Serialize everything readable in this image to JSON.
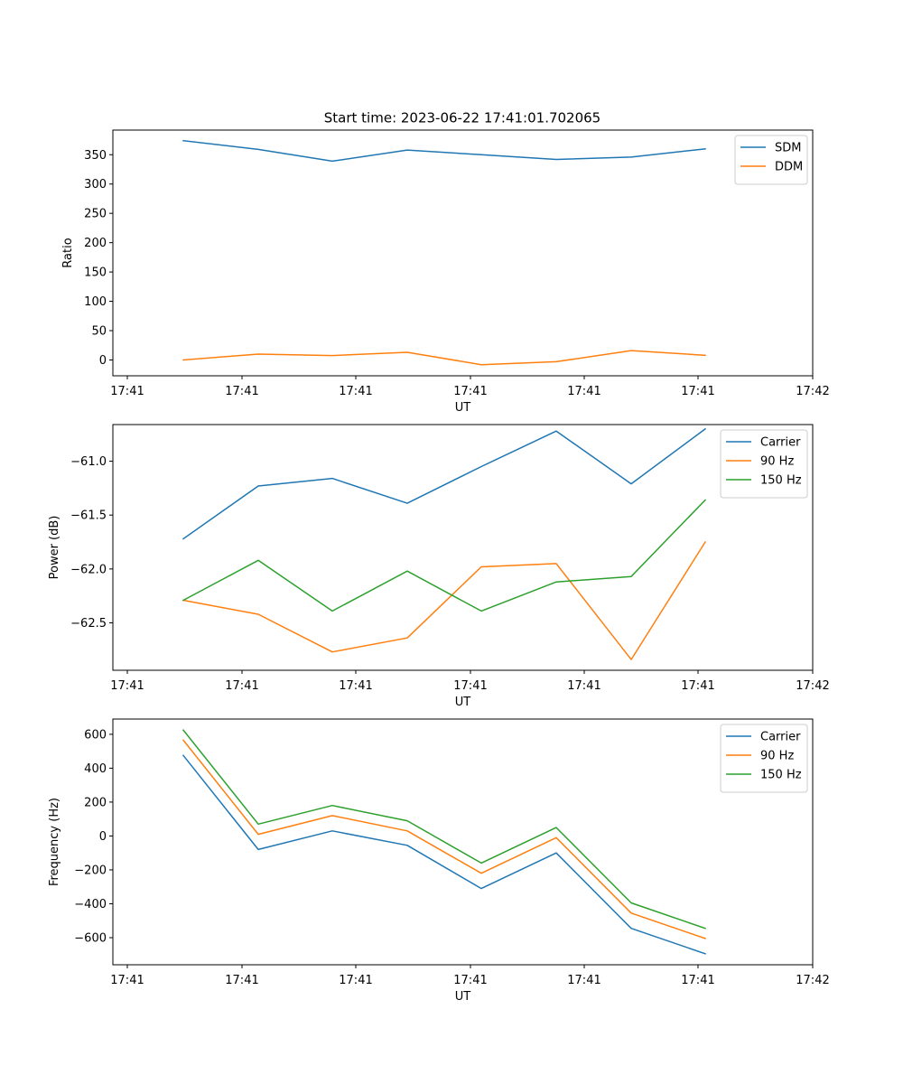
{
  "title": "Start time: 2023-06-22 17:41:01.702065",
  "colors": {
    "blue": "#1f77b4",
    "orange": "#ff7f0e",
    "green": "#2ca02c"
  },
  "chart_data": [
    {
      "type": "line",
      "title": "Start time: 2023-06-22 17:41:01.702065",
      "xlabel": "UT",
      "ylabel": "Ratio",
      "xtick_labels": [
        "17:41",
        "17:41",
        "17:41",
        "17:41",
        "17:41",
        "17:41",
        "17:42"
      ],
      "ytick_labels": [
        "0",
        "50",
        "100",
        "150",
        "200",
        "250",
        "300",
        "350"
      ],
      "yticks": [
        0,
        50,
        100,
        150,
        200,
        250,
        300,
        350
      ],
      "ylim": [
        -27,
        392
      ],
      "grid": false,
      "legend": "top-right",
      "series": [
        {
          "name": "SDM",
          "color": "#1f77b4",
          "values": [
            374,
            359,
            339,
            358,
            350,
            342,
            346,
            360
          ]
        },
        {
          "name": "DDM",
          "color": "#ff7f0e",
          "values": [
            0,
            10,
            7.5,
            13,
            -8,
            -3,
            16,
            8
          ]
        }
      ]
    },
    {
      "type": "line",
      "title": "",
      "xlabel": "UT",
      "ylabel": "Power (dB)",
      "xtick_labels": [
        "17:41",
        "17:41",
        "17:41",
        "17:41",
        "17:41",
        "17:41",
        "17:42"
      ],
      "ytick_labels": [
        "−62.5",
        "−62.0",
        "−61.5",
        "−61.0"
      ],
      "yticks": [
        -62.5,
        -62.0,
        -61.5,
        -61.0
      ],
      "ylim": [
        -62.94,
        -60.66
      ],
      "grid": false,
      "legend": "top-right",
      "series": [
        {
          "name": "Carrier",
          "color": "#1f77b4",
          "values": [
            -61.72,
            -61.23,
            -61.16,
            -61.39,
            -61.05,
            -60.72,
            -61.21,
            -60.7
          ]
        },
        {
          "name": "90 Hz",
          "color": "#ff7f0e",
          "values": [
            -62.29,
            -62.42,
            -62.77,
            -62.64,
            -61.98,
            -61.95,
            -62.84,
            -61.75
          ]
        },
        {
          "name": "150 Hz",
          "color": "#2ca02c",
          "values": [
            -62.29,
            -61.92,
            -62.39,
            -62.02,
            -62.39,
            -62.12,
            -62.07,
            -61.36
          ]
        }
      ]
    },
    {
      "type": "line",
      "title": "",
      "xlabel": "UT",
      "ylabel": "Frequency (Hz)",
      "xtick_labels": [
        "17:41",
        "17:41",
        "17:41",
        "17:41",
        "17:41",
        "17:41",
        "17:42"
      ],
      "ytick_labels": [
        "−600",
        "−400",
        "−200",
        "0",
        "200",
        "400",
        "600"
      ],
      "yticks": [
        -600,
        -400,
        -200,
        0,
        200,
        400,
        600
      ],
      "ylim": [
        -760,
        690
      ],
      "grid": false,
      "legend": "top-right",
      "series": [
        {
          "name": "Carrier",
          "color": "#1f77b4",
          "values": [
            475,
            -80,
            30,
            -55,
            -310,
            -100,
            -545,
            -695
          ]
        },
        {
          "name": "90 Hz",
          "color": "#ff7f0e",
          "values": [
            565,
            10,
            120,
            30,
            -220,
            -10,
            -455,
            -605
          ]
        },
        {
          "name": "150 Hz",
          "color": "#2ca02c",
          "values": [
            625,
            70,
            180,
            90,
            -160,
            50,
            -395,
            -545
          ]
        }
      ]
    }
  ]
}
